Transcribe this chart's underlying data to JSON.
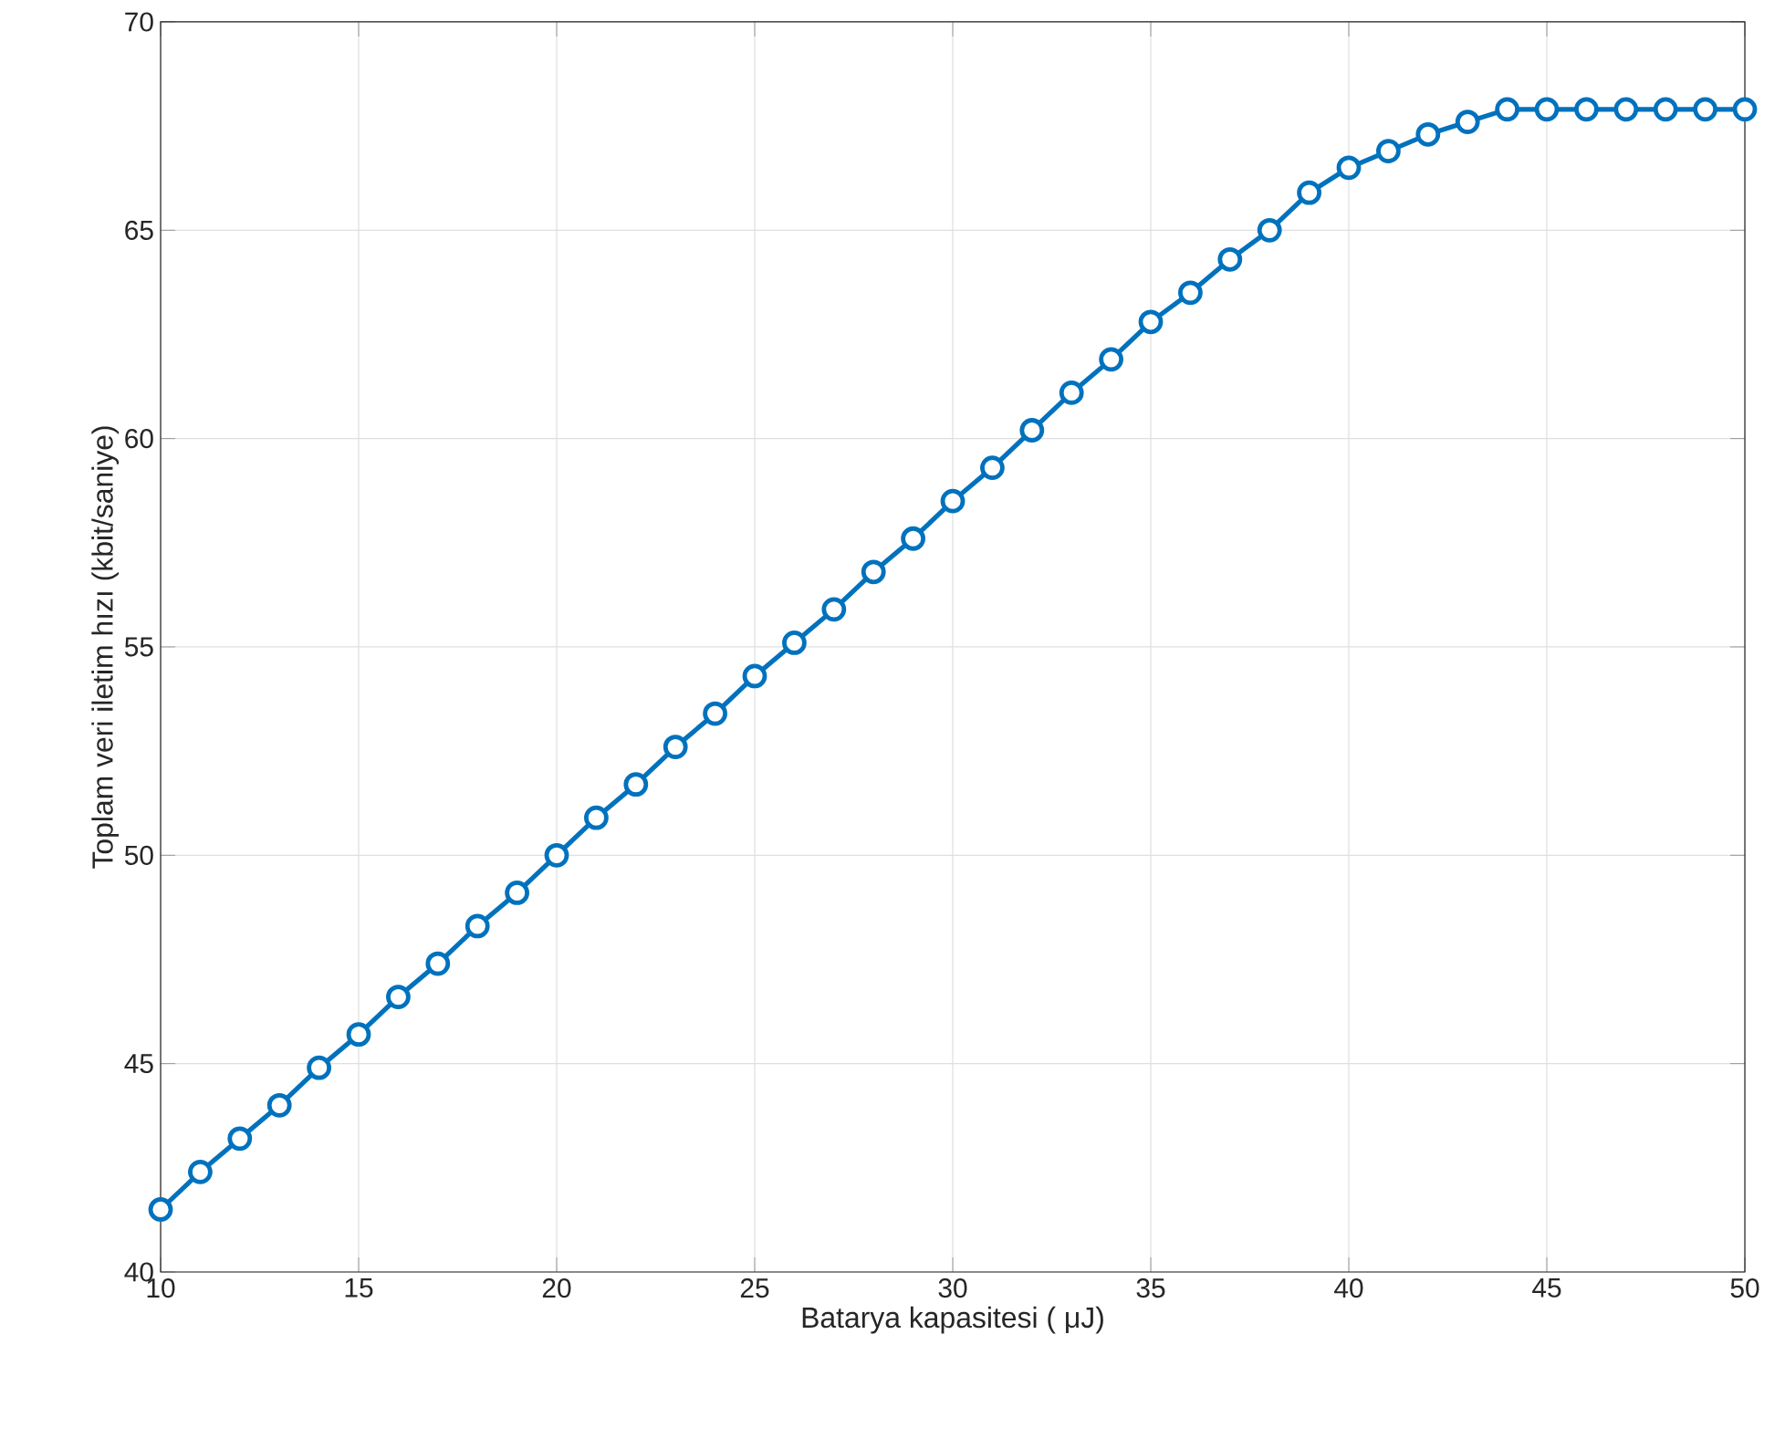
{
  "chart_data": {
    "type": "line",
    "xlabel": "Batarya kapasitesi ( μJ)",
    "ylabel": "Toplam veri iletim hızı (kbit/saniye)",
    "x": [
      10,
      11,
      12,
      13,
      14,
      15,
      16,
      17,
      18,
      19,
      20,
      21,
      22,
      23,
      24,
      25,
      26,
      27,
      28,
      29,
      30,
      31,
      32,
      33,
      34,
      35,
      36,
      37,
      38,
      39,
      40,
      41,
      42,
      43,
      44,
      45,
      46,
      47,
      48,
      49,
      50
    ],
    "series": [
      {
        "color": "#0072bd",
        "values": [
          41.5,
          42.4,
          43.2,
          44.0,
          44.9,
          45.7,
          46.6,
          47.4,
          48.3,
          49.1,
          50.0,
          50.9,
          51.7,
          52.6,
          53.4,
          54.3,
          55.1,
          55.9,
          56.8,
          57.6,
          58.5,
          59.3,
          60.2,
          61.1,
          61.9,
          62.8,
          63.5,
          64.3,
          65.0,
          65.9,
          66.5,
          66.9,
          67.3,
          67.6,
          67.9,
          67.9,
          67.9,
          67.9,
          67.9,
          67.9,
          67.9
        ]
      }
    ],
    "xlim": [
      10,
      50
    ],
    "ylim": [
      40,
      70
    ],
    "xticks": [
      10,
      15,
      20,
      25,
      30,
      35,
      40,
      45,
      50
    ],
    "yticks": [
      40,
      45,
      50,
      55,
      60,
      65,
      70
    ],
    "grid": true,
    "marker": "circle",
    "line_style": "solid"
  }
}
